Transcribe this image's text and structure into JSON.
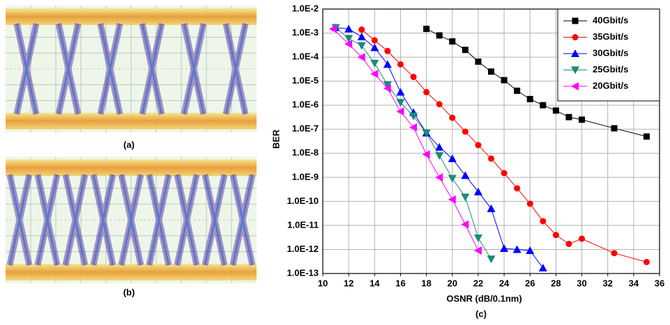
{
  "labels": {
    "a": "(a)",
    "b": "(b)",
    "c": "(c)"
  },
  "chart_data": {
    "type": "line",
    "xlabel": "OSNR (dB/0.1nm)",
    "ylabel": "BER",
    "xlim": [
      10,
      36
    ],
    "xticks": [
      10,
      12,
      14,
      16,
      18,
      20,
      22,
      24,
      26,
      28,
      30,
      32,
      34,
      36
    ],
    "ylim": [
      1e-13,
      0.01
    ],
    "log_y": true,
    "grid": true,
    "legend": "upper right",
    "yticks": [
      {
        "value": 1e-13,
        "label": "1.0E-13"
      },
      {
        "value": 1e-12,
        "label": "1.0E-12"
      },
      {
        "value": 1e-11,
        "label": "1.0E-11"
      },
      {
        "value": 1e-10,
        "label": "1.0E-10"
      },
      {
        "value": 1e-09,
        "label": "1.0E-9"
      },
      {
        "value": 1e-08,
        "label": "1.0E-8"
      },
      {
        "value": 1e-07,
        "label": "1.0E-7"
      },
      {
        "value": 1e-06,
        "label": "1.0E-6"
      },
      {
        "value": 1e-05,
        "label": "1.0E-5"
      },
      {
        "value": 0.0001,
        "label": "1.0E-4"
      },
      {
        "value": 0.001,
        "label": "1.0E-3"
      },
      {
        "value": 0.01,
        "label": "1.0E-2"
      }
    ],
    "series": [
      {
        "name": "40Gbit/s",
        "color": "#000000",
        "marker": "square",
        "x": [
          18,
          19,
          20,
          21,
          22,
          23,
          24,
          25,
          26,
          27,
          28,
          29,
          30,
          32.5,
          35
        ],
        "values": [
          0.0015,
          0.0008,
          0.00045,
          0.0002,
          6.5e-05,
          2.5e-05,
          1.1e-05,
          4e-06,
          1.8e-06,
          1e-06,
          6e-07,
          3.2e-07,
          2.5e-07,
          1.1e-07,
          5e-08
        ]
      },
      {
        "name": "35Gbit/s",
        "color": "#ff0000",
        "marker": "circle",
        "x": [
          13,
          14,
          15,
          16,
          17,
          18,
          19,
          20,
          21,
          22,
          23,
          24,
          25,
          26,
          27,
          28,
          29,
          30,
          32.5,
          35
        ],
        "values": [
          0.0014,
          0.0005,
          0.00018,
          5e-05,
          1.5e-05,
          3.5e-06,
          1.1e-06,
          3e-07,
          8e-08,
          2.2e-08,
          6e-09,
          1.5e-09,
          3.5e-10,
          8e-11,
          1.5e-11,
          4e-12,
          1.7e-12,
          2.8e-12,
          7e-13,
          3e-13
        ]
      },
      {
        "name": "30Gbit/s",
        "color": "#0000ff",
        "marker": "triangle-up",
        "x": [
          11,
          12,
          13,
          14,
          15,
          16,
          17,
          18,
          19,
          20,
          21,
          22,
          23,
          24,
          25,
          26,
          27
        ],
        "values": [
          0.0017,
          0.0015,
          0.0007,
          0.00025,
          5e-05,
          3.5e-06,
          5e-07,
          7e-08,
          1.8e-08,
          6e-09,
          1.2e-09,
          2.5e-10,
          5e-11,
          1.1e-12,
          1e-12,
          9e-13,
          1.7e-13
        ]
      },
      {
        "name": "25Gbit/s",
        "color": "#1b8a78",
        "marker": "triangle-down",
        "x": [
          11,
          12,
          13,
          14,
          15,
          16,
          17,
          18,
          19,
          20,
          21,
          22,
          23
        ],
        "values": [
          0.0017,
          0.0006,
          0.0003,
          5.5e-05,
          7e-06,
          1.3e-06,
          3.5e-07,
          7e-08,
          8e-09,
          9e-10,
          1.5e-10,
          3e-12,
          4e-13
        ]
      },
      {
        "name": "20Gbit/s",
        "color": "#ff00ff",
        "marker": "triangle-left",
        "x": [
          10.8,
          12,
          13,
          14,
          15,
          16,
          17,
          18,
          19,
          20,
          21,
          22
        ],
        "values": [
          0.0015,
          0.00035,
          0.0001,
          2e-05,
          5e-06,
          5.5e-07,
          1.2e-07,
          9e-09,
          1e-09,
          1.2e-10,
          1.1e-11,
          9e-13
        ]
      }
    ]
  }
}
